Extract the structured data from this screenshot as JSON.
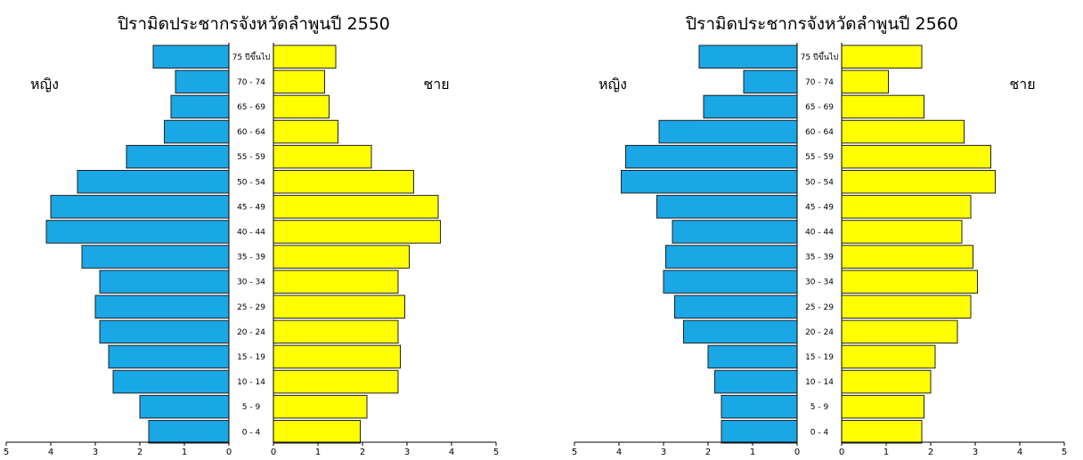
{
  "colors": {
    "female": "#1aa7e6",
    "male": "#ffff00"
  },
  "chart_data": [
    {
      "type": "bar",
      "title": "ปิรามิดประชากรจังหวัดลำพูนปี 2550",
      "female_label": "หญิง",
      "male_label": "ชาย",
      "categories": [
        "0 - 4",
        "5 - 9",
        "10 - 14",
        "15 - 19",
        "20 - 24",
        "25 - 29",
        "30 - 34",
        "35 - 39",
        "40 - 44",
        "45 - 49",
        "50 - 54",
        "55 - 59",
        "60 - 64",
        "65 - 69",
        "70 - 74",
        "75 ปีขึ้นไป"
      ],
      "series": [
        {
          "name": "หญิง",
          "values": [
            1.8,
            2.0,
            2.6,
            2.7,
            2.9,
            3.0,
            2.9,
            3.3,
            4.1,
            4.0,
            3.4,
            2.3,
            1.45,
            1.3,
            1.2,
            1.7
          ]
        },
        {
          "name": "ชาย",
          "values": [
            1.95,
            2.1,
            2.8,
            2.85,
            2.8,
            2.95,
            2.8,
            3.05,
            3.75,
            3.7,
            3.15,
            2.2,
            1.45,
            1.25,
            1.15,
            1.4
          ]
        }
      ],
      "xlim": [
        0,
        5
      ],
      "ticks": [
        5,
        4,
        3,
        2,
        1,
        0
      ]
    },
    {
      "type": "bar",
      "title": "ปิรามิดประชากรจังหวัดลำพูนปี 2560",
      "female_label": "หญิง",
      "male_label": "ชาย",
      "categories": [
        "0 - 4",
        "5 - 9",
        "10 - 14",
        "15 - 19",
        "20 - 24",
        "25 - 29",
        "30 - 34",
        "35 - 39",
        "40 - 44",
        "45 - 49",
        "50 - 54",
        "55 - 59",
        "60 - 64",
        "65 - 69",
        "70 - 74",
        "75 ปีขึ้นไป"
      ],
      "series": [
        {
          "name": "หญิง",
          "values": [
            1.7,
            1.7,
            1.85,
            2.0,
            2.55,
            2.75,
            3.0,
            2.95,
            2.8,
            3.15,
            3.95,
            3.85,
            3.1,
            2.1,
            1.2,
            2.2
          ]
        },
        {
          "name": "ชาย",
          "values": [
            1.8,
            1.85,
            2.0,
            2.1,
            2.6,
            2.9,
            3.05,
            2.95,
            2.7,
            2.9,
            3.45,
            3.35,
            2.75,
            1.85,
            1.05,
            1.8
          ]
        }
      ],
      "xlim": [
        0,
        5
      ],
      "ticks": [
        5,
        4,
        3,
        2,
        1,
        0
      ]
    }
  ]
}
